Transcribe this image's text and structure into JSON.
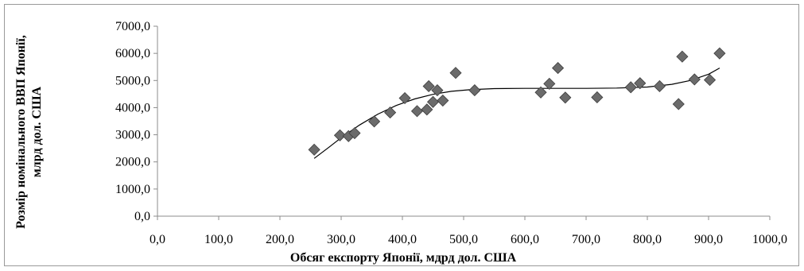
{
  "chart_data": {
    "type": "scatter",
    "title": "",
    "xlabel": "Обсяг експорту Японії, мдрд  дол. США",
    "ylabel_line1": "Розмір номінального ВВП Японії,",
    "ylabel_line2": "млрд дол. США",
    "xlim": [
      0,
      1000
    ],
    "ylim": [
      0,
      7000
    ],
    "x_ticks": [
      0,
      100,
      200,
      300,
      400,
      500,
      600,
      700,
      800,
      900,
      1000
    ],
    "y_ticks": [
      0,
      1000,
      2000,
      3000,
      4000,
      5000,
      6000,
      7000
    ],
    "x_tick_labels": [
      "0,0",
      "100,0",
      "200,0",
      "300,0",
      "400,0",
      "500,0",
      "600,0",
      "700,0",
      "800,0",
      "900,0",
      "1000,0"
    ],
    "y_tick_labels": [
      "0,0",
      "1000,0",
      "2000,0",
      "3000,0",
      "4000,0",
      "5000,0",
      "6000,0",
      "7000,0"
    ],
    "grid": false,
    "legend": "none",
    "marker": "diamond",
    "marker_color": "#6b6b6b",
    "trendline_color": "#000000",
    "points": [
      {
        "x": 256,
        "y": 2450
      },
      {
        "x": 298,
        "y": 2980
      },
      {
        "x": 312,
        "y": 2950
      },
      {
        "x": 322,
        "y": 3060
      },
      {
        "x": 354,
        "y": 3490
      },
      {
        "x": 380,
        "y": 3820
      },
      {
        "x": 404,
        "y": 4350
      },
      {
        "x": 424,
        "y": 3870
      },
      {
        "x": 440,
        "y": 3930
      },
      {
        "x": 443,
        "y": 4790
      },
      {
        "x": 450,
        "y": 4210
      },
      {
        "x": 457,
        "y": 4640
      },
      {
        "x": 466,
        "y": 4260
      },
      {
        "x": 487,
        "y": 5280
      },
      {
        "x": 518,
        "y": 4640
      },
      {
        "x": 626,
        "y": 4560
      },
      {
        "x": 640,
        "y": 4880
      },
      {
        "x": 654,
        "y": 5460
      },
      {
        "x": 666,
        "y": 4370
      },
      {
        "x": 718,
        "y": 4380
      },
      {
        "x": 773,
        "y": 4750
      },
      {
        "x": 788,
        "y": 4900
      },
      {
        "x": 820,
        "y": 4790
      },
      {
        "x": 851,
        "y": 4130
      },
      {
        "x": 857,
        "y": 5880
      },
      {
        "x": 877,
        "y": 5040
      },
      {
        "x": 902,
        "y": 5020
      },
      {
        "x": 918,
        "y": 6000
      }
    ],
    "trendline": [
      {
        "x": 256,
        "y": 2130
      },
      {
        "x": 280,
        "y": 2540
      },
      {
        "x": 300,
        "y": 2890
      },
      {
        "x": 330,
        "y": 3360
      },
      {
        "x": 360,
        "y": 3760
      },
      {
        "x": 390,
        "y": 4080
      },
      {
        "x": 420,
        "y": 4320
      },
      {
        "x": 450,
        "y": 4490
      },
      {
        "x": 480,
        "y": 4600
      },
      {
        "x": 510,
        "y": 4660
      },
      {
        "x": 550,
        "y": 4700
      },
      {
        "x": 600,
        "y": 4710
      },
      {
        "x": 650,
        "y": 4710
      },
      {
        "x": 700,
        "y": 4710
      },
      {
        "x": 750,
        "y": 4720
      },
      {
        "x": 800,
        "y": 4760
      },
      {
        "x": 840,
        "y": 4860
      },
      {
        "x": 870,
        "y": 5000
      },
      {
        "x": 900,
        "y": 5230
      },
      {
        "x": 918,
        "y": 5460
      }
    ]
  }
}
